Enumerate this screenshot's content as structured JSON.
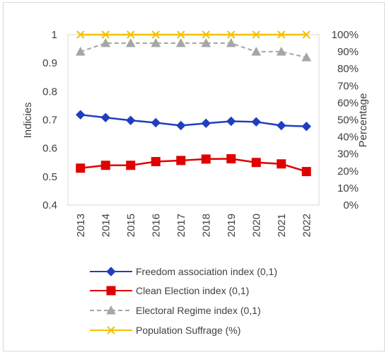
{
  "chart_data": {
    "type": "line",
    "title": "",
    "categories": [
      "2013",
      "2014",
      "2015",
      "2016",
      "2017",
      "2018",
      "2019",
      "2020",
      "2021",
      "2022"
    ],
    "y_left": {
      "label": "Indicies",
      "ylim": [
        0.4,
        1
      ],
      "ticks": [
        "0.4",
        "0.5",
        "0.6",
        "0.7",
        "0.8",
        "0.9",
        "1"
      ],
      "tick_values": [
        0.4,
        0.5,
        0.6,
        0.7,
        0.8,
        0.9,
        1.0
      ]
    },
    "y_right": {
      "label": "Percentage",
      "ylim": [
        0,
        100
      ],
      "ticks": [
        "0%",
        "10%",
        "20%",
        "30%",
        "40%",
        "50%",
        "60%",
        "70%",
        "80%",
        "90%",
        "100%"
      ],
      "tick_values": [
        0,
        10,
        20,
        30,
        40,
        50,
        60,
        70,
        80,
        90,
        100
      ]
    },
    "series": [
      {
        "name": "Freedom association  index (0,1)",
        "axis": "left",
        "color": "#1f3fbf",
        "marker": "diamond",
        "dash": "solid",
        "values": [
          0.718,
          0.708,
          0.698,
          0.69,
          0.68,
          0.688,
          0.695,
          0.693,
          0.68,
          0.677
        ]
      },
      {
        "name": "Clean Election  index (0,1)",
        "axis": "left",
        "color": "#e00000",
        "marker": "square",
        "dash": "solid",
        "values": [
          0.53,
          0.54,
          0.54,
          0.553,
          0.557,
          0.562,
          0.563,
          0.55,
          0.545,
          0.518
        ]
      },
      {
        "name": "Electoral Regime  index (0,1)",
        "axis": "left",
        "color": "#a6a6a6",
        "marker": "triangle",
        "dash": "dashed",
        "values": [
          0.94,
          0.97,
          0.97,
          0.97,
          0.97,
          0.97,
          0.97,
          0.94,
          0.94,
          0.92
        ]
      },
      {
        "name": "Population Suffrage (%)",
        "axis": "right",
        "color": "#f2c200",
        "marker": "x",
        "dash": "solid",
        "values": [
          100,
          100,
          100,
          100,
          100,
          100,
          100,
          100,
          100,
          100
        ]
      }
    ],
    "grid": false,
    "legend_position": "bottom"
  }
}
